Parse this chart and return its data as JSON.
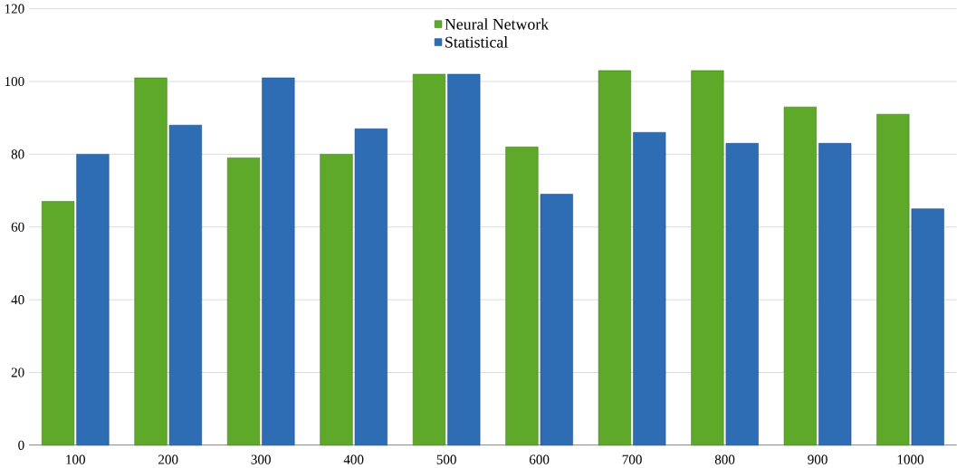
{
  "chart_data": {
    "type": "bar",
    "categories": [
      "100",
      "200",
      "300",
      "400",
      "500",
      "600",
      "700",
      "800",
      "900",
      "1000"
    ],
    "series": [
      {
        "name": "Neural Network",
        "color": "#5ea82a",
        "values": [
          67,
          101,
          79,
          80,
          102,
          82,
          103,
          103,
          93,
          91
        ]
      },
      {
        "name": "Statistical",
        "color": "#2e6db4",
        "values": [
          80,
          88,
          101,
          87,
          102,
          69,
          86,
          83,
          83,
          65
        ]
      }
    ],
    "ylim": [
      0,
      120
    ],
    "yticks": [
      0,
      20,
      40,
      60,
      80,
      100,
      120
    ],
    "grid": "y",
    "legend": "top"
  }
}
